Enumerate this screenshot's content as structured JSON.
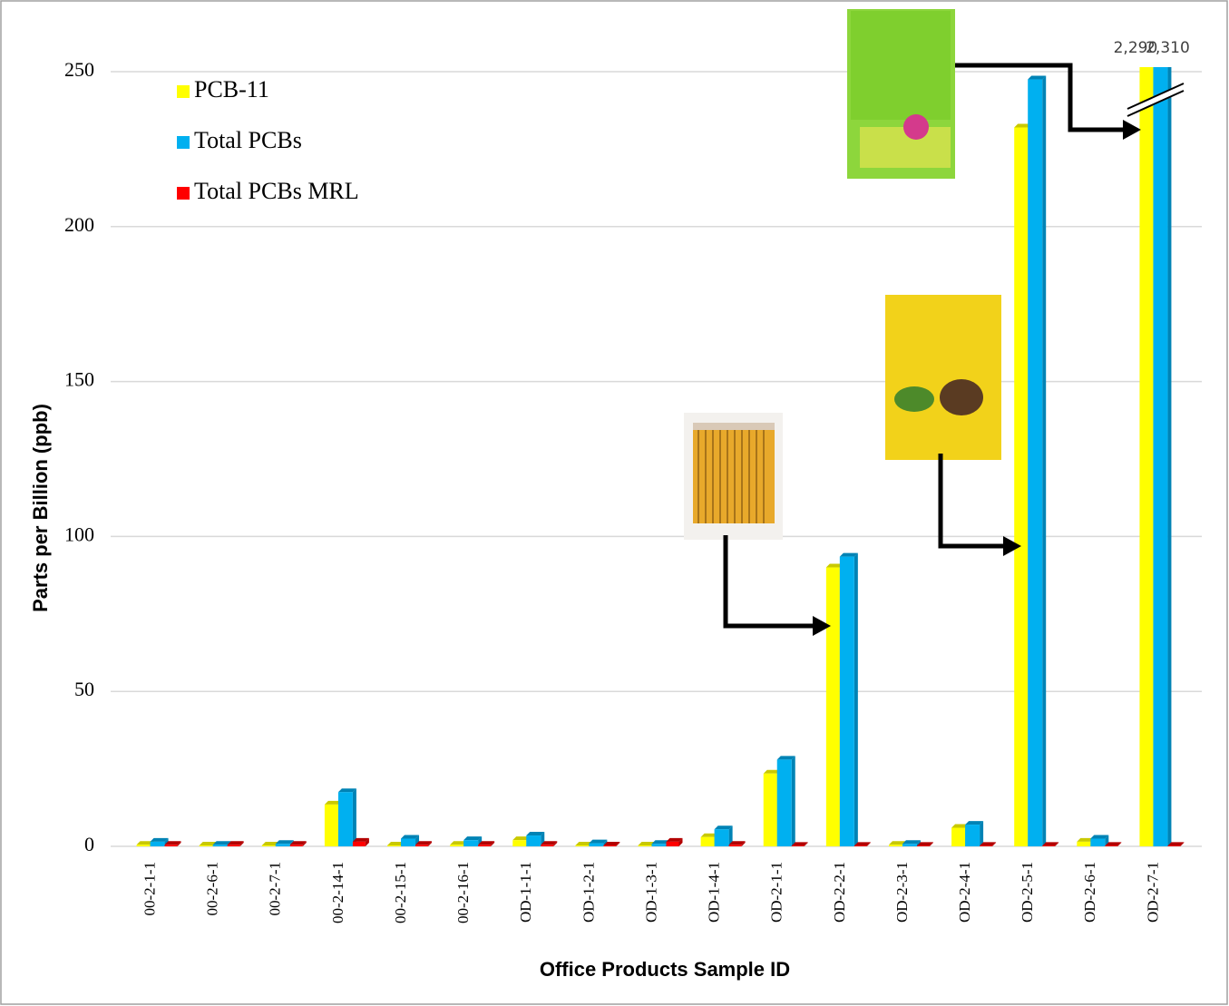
{
  "chart_data": {
    "type": "bar",
    "x_label": "Office Products Sample ID",
    "y_label": "Parts per Billion (ppb)",
    "categories": [
      "00-2-1-1",
      "00-2-6-1",
      "00-2-7-1",
      "00-2-14-1",
      "00-2-15-1",
      "00-2-16-1",
      "OD-1-1-1",
      "OD-1-2-1",
      "OD-1-3-1",
      "OD-1-4-1",
      "OD-2-1-1",
      "OD-2-2-1",
      "OD-2-3-1",
      "OD-2-4-1",
      "OD-2-5-1",
      "OD-2-6-1",
      "OD-2-7-1"
    ],
    "series": [
      {
        "name": "PCB-11",
        "color": "#ffff00",
        "side": "#c9c900",
        "values": [
          0.5,
          0.3,
          0.3,
          13.5,
          0.3,
          0.5,
          2,
          0.3,
          0.3,
          3,
          23.5,
          90,
          0.5,
          6,
          232,
          1.5,
          2290
        ],
        "value_labels": [
          null,
          null,
          null,
          null,
          null,
          null,
          null,
          null,
          null,
          null,
          null,
          null,
          null,
          null,
          null,
          null,
          "2,290"
        ]
      },
      {
        "name": "Total PCBs",
        "color": "#00b0f0",
        "side": "#0083b5",
        "values": [
          1.5,
          0.5,
          0.8,
          17.5,
          2.5,
          2,
          3.5,
          1,
          0.8,
          5.5,
          28,
          93.5,
          0.8,
          7,
          247.5,
          2.5,
          2310
        ],
        "value_labels": [
          null,
          null,
          null,
          null,
          null,
          null,
          null,
          null,
          null,
          null,
          null,
          null,
          null,
          null,
          null,
          null,
          "2,310"
        ]
      },
      {
        "name": "Total PCBs MRL",
        "color": "#ff0000",
        "side": "#b30000",
        "values": [
          0.5,
          0.5,
          0.5,
          1.5,
          0.5,
          0.5,
          0.5,
          0.3,
          1.5,
          0.5,
          0.2,
          0.2,
          0.2,
          0.2,
          0.2,
          0.2,
          0.2
        ]
      }
    ],
    "ylim": [
      0,
      250
    ],
    "yticks": [
      0,
      50,
      100,
      150,
      200,
      250
    ],
    "grid": true
  }
}
